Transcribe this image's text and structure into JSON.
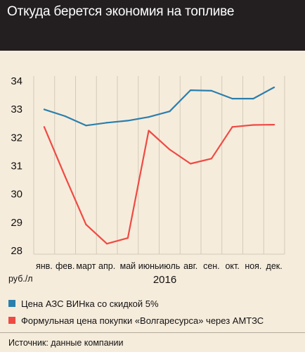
{
  "header": {
    "title": "Откуда берется экономия на топливе"
  },
  "chart_data": {
    "type": "line",
    "categories": [
      "янв.",
      "фев.",
      "март",
      "апр.",
      "май",
      "июнь",
      "июль",
      "авг.",
      "сен.",
      "окт.",
      "ноя.",
      "дек."
    ],
    "year_label": "2016",
    "ylabel": "руб./л",
    "ylim": [
      28,
      34
    ],
    "yticks": [
      28,
      29,
      30,
      31,
      32,
      33,
      34
    ],
    "grid": "vertical",
    "legend_position": "bottom",
    "series": [
      {
        "name": "Цена АЗС ВИНка со скидкой 5%",
        "color": "#2a7fad",
        "values": [
          32.97,
          32.73,
          32.4,
          32.5,
          32.57,
          32.7,
          32.9,
          33.65,
          33.63,
          33.35,
          33.35,
          33.75
        ]
      },
      {
        "name": "Формульная цена покупки «Волгаресурса» через АМТЗС",
        "color": "#ef4a43",
        "values": [
          32.35,
          30.6,
          28.9,
          28.22,
          28.42,
          32.22,
          31.55,
          31.05,
          31.23,
          32.35,
          32.42,
          32.43
        ]
      }
    ]
  },
  "source": "Источник: данные компании"
}
